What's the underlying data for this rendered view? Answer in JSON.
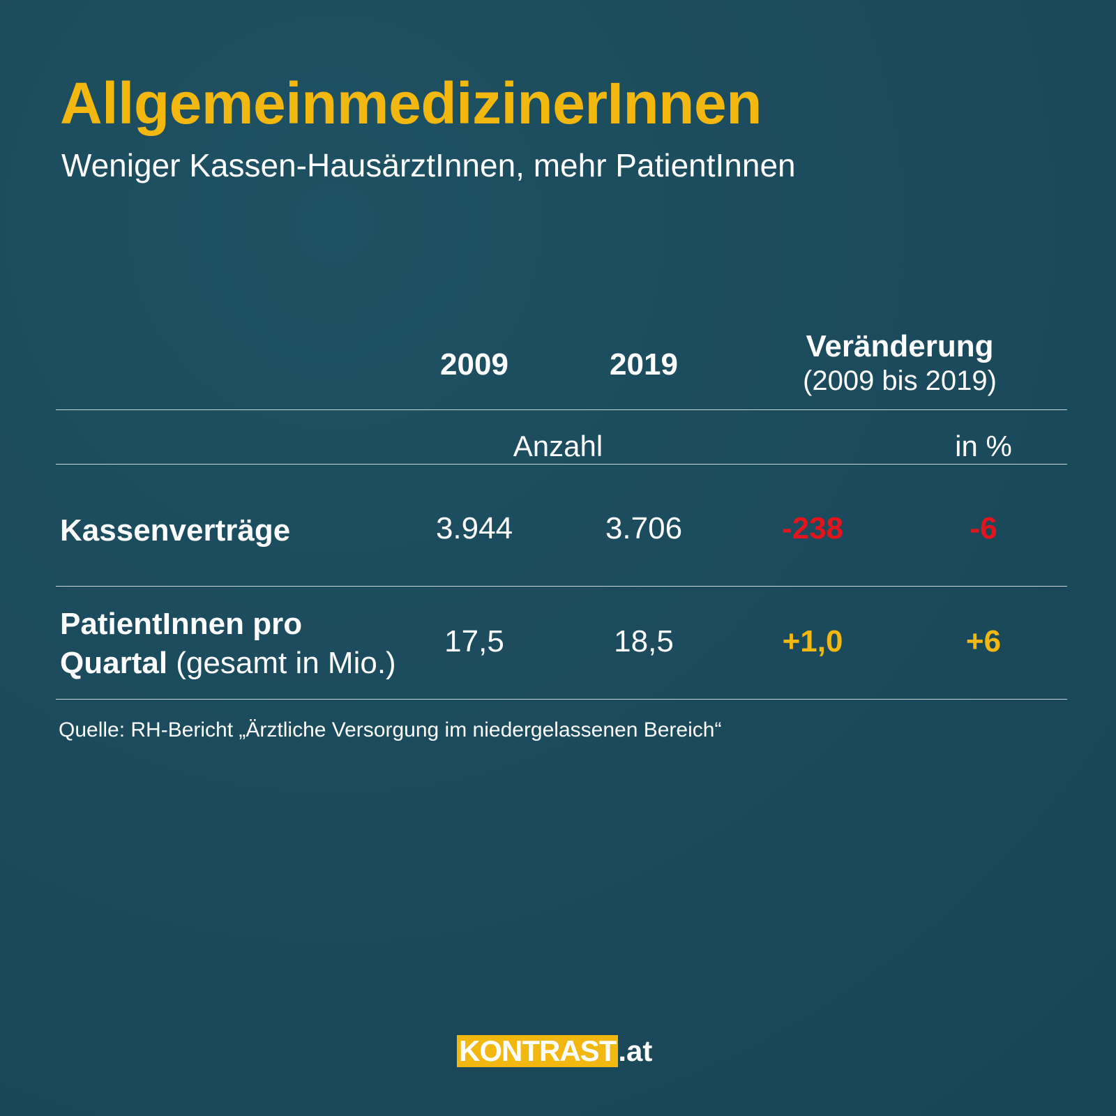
{
  "title": "AllgemeinmedizinerInnen",
  "subtitle": "Weniger Kassen-HausärztInnen, mehr PatientInnen",
  "chart_data": {
    "type": "table",
    "columns": [
      "2009",
      "2019",
      "Veränderung",
      "(2009 bis 2019)"
    ],
    "column_headers": {
      "year1": "2009",
      "year2": "2019",
      "change": "Veränderung",
      "change_sub": "(2009 bis 2019)"
    },
    "units": {
      "count": "Anzahl",
      "percent": "in %"
    },
    "rows": [
      {
        "label_bold": "Kassenverträge",
        "v2009": "3.944",
        "v2019": "3.706",
        "change_abs": "-238",
        "change_pct": "-6"
      },
      {
        "label_bold_line1": "PatientInnen pro",
        "label_bold_line2": "Quartal",
        "label_light": "(gesamt in Mio.)",
        "v2009": "17,5",
        "v2019": "18,5",
        "change_abs": "+1,0",
        "change_pct": "+6"
      }
    ],
    "colors": {
      "negative": "#e3141b",
      "positive": "#f2b80f"
    }
  },
  "source": "Quelle: RH-Bericht „Ärztliche Versorgung im niedergelassenen Bereich“",
  "brand": {
    "name": "KONTRAST",
    "tld": ".at"
  }
}
